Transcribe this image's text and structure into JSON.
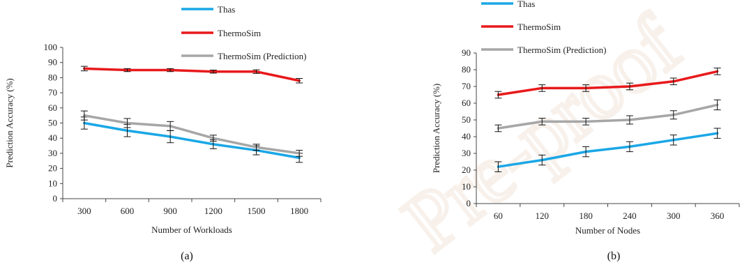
{
  "watermark": "Pre-proof",
  "chart_data": [
    {
      "type": "line",
      "panel_label": "(a)",
      "xlabel": "Number of Workloads",
      "ylabel": "Prediction Accuracy (%)",
      "categories": [
        "300",
        "600",
        "900",
        "1200",
        "1500",
        "1800"
      ],
      "ylim": [
        0,
        100
      ],
      "yticks": [
        0,
        10,
        20,
        30,
        40,
        50,
        60,
        70,
        80,
        90,
        100
      ],
      "legend_position": "top-center",
      "series": [
        {
          "name": "Thas",
          "color": "#1aa7e6",
          "values": [
            50,
            45,
            41,
            36,
            32,
            27
          ],
          "errors": [
            4,
            4,
            4,
            3,
            3,
            3
          ]
        },
        {
          "name": "ThermoSim",
          "color": "#e8191b",
          "values": [
            86,
            85,
            85,
            84,
            84,
            78
          ],
          "errors": [
            1.5,
            1,
            1,
            1,
            1.2,
            1.5
          ]
        },
        {
          "name": "ThermoSim (Prediction)",
          "color": "#a6a6a6",
          "values": [
            55,
            50,
            48,
            40,
            34,
            30
          ],
          "errors": [
            3,
            3,
            3,
            2,
            2,
            2
          ]
        }
      ]
    },
    {
      "type": "line",
      "panel_label": "(b)",
      "xlabel": "Number of Nodes",
      "ylabel": "Prediction Accuracy (%)",
      "categories": [
        "60",
        "120",
        "180",
        "240",
        "300",
        "360"
      ],
      "ylim": [
        0,
        90
      ],
      "yticks": [
        0,
        10,
        20,
        30,
        40,
        50,
        60,
        70,
        80,
        90
      ],
      "legend_position": "top-center",
      "series": [
        {
          "name": "Thas",
          "color": "#1aa7e6",
          "values": [
            22,
            26,
            31,
            34,
            38,
            42
          ],
          "errors": [
            3,
            3,
            3,
            3,
            3,
            3
          ]
        },
        {
          "name": "ThermoSim",
          "color": "#e8191b",
          "values": [
            65,
            69,
            69,
            70,
            73,
            79
          ],
          "errors": [
            2,
            2,
            2,
            2,
            2,
            2
          ]
        },
        {
          "name": "ThermoSim (Prediction)",
          "color": "#a6a6a6",
          "values": [
            45,
            49,
            49,
            50,
            53,
            59
          ],
          "errors": [
            2,
            2,
            2,
            2.5,
            2.5,
            3
          ]
        }
      ]
    }
  ]
}
